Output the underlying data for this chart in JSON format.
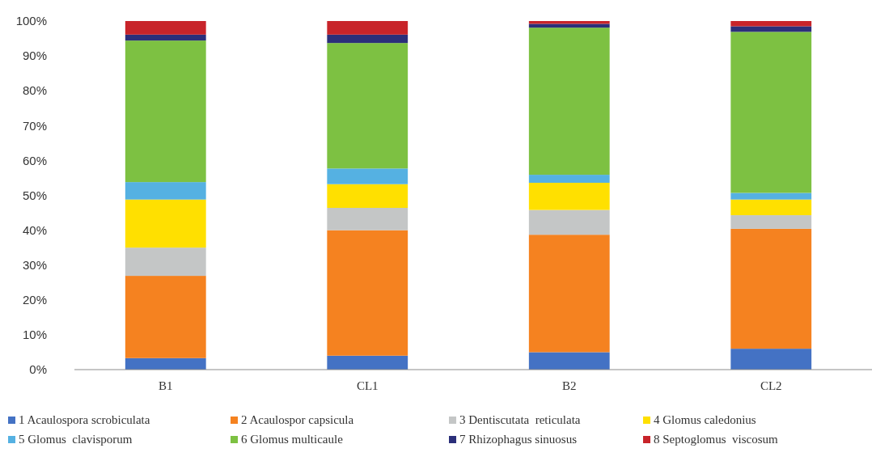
{
  "chart_data": {
    "type": "bar",
    "stacked": true,
    "categories": [
      "B1",
      "CL1",
      "B2",
      "CL2"
    ],
    "series": [
      {
        "name": "1 Acaulospora scrobiculata",
        "color": "#4472c4",
        "values": [
          3.3,
          4.0,
          5.0,
          6.0
        ]
      },
      {
        "name": "2 Acaulospor capsicula",
        "color": "#f58220",
        "values": [
          23.6,
          36.0,
          33.7,
          34.4
        ]
      },
      {
        "name": "3 Dentiscutata  reticulata",
        "color": "#c4c6c6",
        "values": [
          8.1,
          6.4,
          7.1,
          3.9
        ]
      },
      {
        "name": "4 Glomus caledonius",
        "color": "#ffe000",
        "values": [
          13.8,
          6.8,
          7.8,
          4.5
        ]
      },
      {
        "name": "5 Glomus  clavisporum",
        "color": "#55b1e2",
        "values": [
          5.0,
          4.5,
          2.3,
          1.9
        ]
      },
      {
        "name": "6 Glomus multicaule",
        "color": "#7dc142",
        "values": [
          40.6,
          36.0,
          42.2,
          46.2
        ]
      },
      {
        "name": "7 Rhizophagus sinuosus",
        "color": "#2b2f7a",
        "values": [
          1.7,
          2.4,
          1.1,
          1.6
        ]
      },
      {
        "name": "8 Septoglomus  viscosum",
        "color": "#c8242a",
        "values": [
          3.9,
          3.9,
          0.8,
          1.5
        ]
      }
    ],
    "ylim": [
      0,
      100
    ],
    "yticks": [
      {
        "value": 0,
        "label": "0%"
      },
      {
        "value": 10,
        "label": "10%"
      },
      {
        "value": 20,
        "label": "20%"
      },
      {
        "value": 30,
        "label": "30%"
      },
      {
        "value": 40,
        "label": "40%"
      },
      {
        "value": 50,
        "label": "50%"
      },
      {
        "value": 60,
        "label": "60%"
      },
      {
        "value": 70,
        "label": "70%"
      },
      {
        "value": 80,
        "label": "80%"
      },
      {
        "value": 90,
        "label": "90%"
      },
      {
        "value": 100,
        "label": "100%"
      }
    ],
    "grid": false,
    "legend": "bottom"
  }
}
